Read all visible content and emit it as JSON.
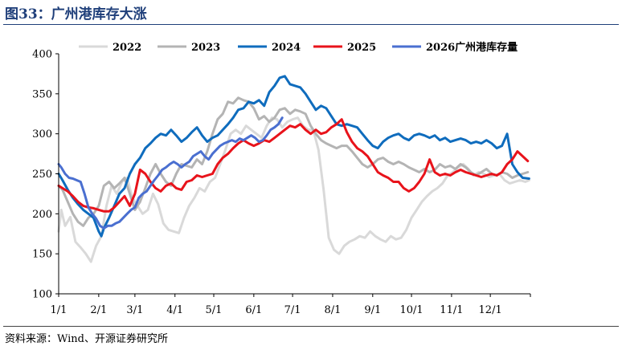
{
  "figure": {
    "title": "图33：广州港库存大涨",
    "source": "资料来源：Wind、开源证券研究所"
  },
  "colors": {
    "s2022": "#d9d9d9",
    "s2023": "#b4b4b4",
    "s2024": "#0f6cbd",
    "s2025": "#e8131b",
    "s2026": "#4a6fd0",
    "title": "#1f3f7a"
  },
  "chart_data": {
    "type": "line",
    "title": "",
    "xlabel": "",
    "ylabel": "",
    "ylim": [
      100,
      400
    ],
    "yticks": [
      "100",
      "150",
      "200",
      "250",
      "300",
      "350",
      "400"
    ],
    "xlim": [
      1,
      366
    ],
    "xticks": [
      {
        "label": "1/1",
        "day": 1
      },
      {
        "label": "2/1",
        "day": 32
      },
      {
        "label": "3/1",
        "day": 60
      },
      {
        "label": "4/1",
        "day": 91
      },
      {
        "label": "5/1",
        "day": 121
      },
      {
        "label": "6/1",
        "day": 152
      },
      {
        "label": "7/1",
        "day": 182
      },
      {
        "label": "8/1",
        "day": 213
      },
      {
        "label": "9/1",
        "day": 244
      },
      {
        "label": "10/1",
        "day": 274
      },
      {
        "label": "11/1",
        "day": 305
      },
      {
        "label": "12/1",
        "day": 335
      }
    ],
    "grid": false,
    "legend_position": "top",
    "series": [
      {
        "name": "2022",
        "color_key": "s2022",
        "x": [
          1,
          3,
          6,
          10,
          14,
          18,
          22,
          26,
          30,
          34,
          38,
          42,
          46,
          50,
          54,
          58,
          62,
          66,
          70,
          74,
          78,
          82,
          86,
          90,
          94,
          98,
          102,
          106,
          110,
          114,
          118,
          122,
          126,
          130,
          134,
          138,
          142,
          146,
          150,
          154,
          158,
          162,
          166,
          170,
          174,
          178,
          182,
          186,
          190,
          194,
          198,
          202,
          206,
          210,
          214,
          218,
          222,
          226,
          230,
          234,
          238,
          242,
          246,
          250,
          254,
          258,
          262,
          266,
          270,
          274,
          278,
          282,
          286,
          290,
          294,
          298,
          302,
          306,
          310,
          314,
          318,
          322,
          326,
          330,
          334,
          338,
          342,
          346,
          350,
          354,
          358,
          362,
          365
        ],
        "values": [
          178,
          205,
          185,
          196,
          165,
          158,
          150,
          140,
          160,
          172,
          210,
          235,
          225,
          240,
          245,
          220,
          210,
          200,
          205,
          225,
          212,
          188,
          180,
          178,
          176,
          195,
          210,
          220,
          232,
          228,
          240,
          245,
          262,
          280,
          300,
          305,
          300,
          310,
          305,
          300,
          295,
          310,
          320,
          318,
          308,
          315,
          318,
          320,
          310,
          305,
          305,
          280,
          230,
          170,
          155,
          150,
          160,
          165,
          168,
          172,
          170,
          178,
          172,
          168,
          165,
          172,
          168,
          170,
          180,
          195,
          205,
          215,
          222,
          228,
          232,
          238,
          248,
          252,
          258,
          262,
          256,
          248,
          252,
          250,
          246,
          248,
          250,
          242,
          238,
          240,
          242,
          240,
          242
        ]
      },
      {
        "name": "2023",
        "color_key": "s2023",
        "x": [
          1,
          4,
          8,
          12,
          16,
          20,
          24,
          28,
          32,
          36,
          40,
          44,
          48,
          52,
          56,
          60,
          64,
          68,
          72,
          76,
          80,
          84,
          88,
          92,
          96,
          100,
          104,
          108,
          112,
          116,
          120,
          124,
          128,
          132,
          136,
          140,
          144,
          148,
          152,
          156,
          160,
          164,
          168,
          172,
          176,
          180,
          184,
          188,
          192,
          196,
          200,
          204,
          208,
          212,
          216,
          220,
          224,
          228,
          232,
          236,
          240,
          244,
          248,
          252,
          256,
          260,
          264,
          268,
          272,
          276,
          280,
          284,
          288,
          292,
          296,
          300,
          304,
          308,
          312,
          316,
          320,
          324,
          328,
          332,
          336,
          340,
          344,
          348,
          352,
          356,
          360,
          364
        ],
        "values": [
          235,
          230,
          215,
          200,
          190,
          185,
          195,
          200,
          210,
          235,
          240,
          232,
          238,
          245,
          225,
          205,
          215,
          232,
          250,
          262,
          250,
          240,
          235,
          250,
          262,
          260,
          258,
          268,
          262,
          278,
          300,
          318,
          325,
          340,
          338,
          345,
          342,
          340,
          332,
          318,
          322,
          315,
          320,
          330,
          332,
          325,
          330,
          328,
          325,
          310,
          300,
          292,
          288,
          285,
          282,
          285,
          285,
          278,
          270,
          262,
          258,
          262,
          268,
          270,
          265,
          262,
          265,
          262,
          258,
          255,
          252,
          256,
          252,
          255,
          262,
          258,
          260,
          256,
          262,
          258,
          252,
          248,
          252,
          256,
          250,
          248,
          252,
          250,
          245,
          248,
          250,
          252
        ]
      },
      {
        "name": "2024",
        "color_key": "s2024",
        "x": [
          1,
          4,
          8,
          12,
          16,
          20,
          24,
          28,
          32,
          34,
          36,
          40,
          44,
          48,
          52,
          56,
          60,
          64,
          68,
          72,
          76,
          80,
          84,
          88,
          92,
          96,
          100,
          104,
          108,
          112,
          116,
          120,
          124,
          128,
          132,
          136,
          140,
          144,
          148,
          152,
          156,
          160,
          164,
          168,
          172,
          176,
          180,
          184,
          188,
          192,
          196,
          200,
          204,
          208,
          212,
          216,
          220,
          224,
          228,
          232,
          236,
          240,
          244,
          248,
          252,
          256,
          260,
          264,
          268,
          272,
          276,
          280,
          284,
          288,
          292,
          296,
          300,
          304,
          308,
          312,
          316,
          320,
          324,
          328,
          332,
          336,
          340,
          344,
          348,
          352,
          356,
          360,
          365
        ],
        "values": [
          250,
          242,
          230,
          220,
          212,
          205,
          200,
          195,
          178,
          172,
          182,
          195,
          210,
          225,
          232,
          250,
          262,
          270,
          282,
          288,
          295,
          300,
          298,
          305,
          298,
          290,
          295,
          302,
          308,
          298,
          290,
          295,
          298,
          305,
          312,
          320,
          330,
          332,
          340,
          338,
          342,
          335,
          352,
          360,
          370,
          372,
          362,
          360,
          358,
          350,
          340,
          330,
          335,
          332,
          322,
          312,
          310,
          312,
          310,
          308,
          300,
          292,
          285,
          282,
          290,
          295,
          298,
          300,
          295,
          292,
          298,
          300,
          298,
          295,
          298,
          292,
          295,
          290,
          292,
          294,
          292,
          288,
          290,
          288,
          292,
          288,
          282,
          285,
          300,
          262,
          252,
          245,
          244
        ]
      },
      {
        "name": "2025",
        "color_key": "s2025",
        "x": [
          1,
          4,
          8,
          12,
          16,
          20,
          24,
          28,
          32,
          36,
          40,
          44,
          48,
          52,
          56,
          60,
          64,
          68,
          72,
          76,
          80,
          84,
          88,
          92,
          96,
          100,
          104,
          108,
          112,
          116,
          120,
          124,
          128,
          132,
          136,
          140,
          144,
          148,
          152,
          156,
          160,
          164,
          168,
          172,
          176,
          180,
          184,
          188,
          192,
          196,
          200,
          204,
          208,
          212,
          216,
          220,
          224,
          228,
          232,
          236,
          240,
          244,
          248,
          252,
          256,
          260,
          264,
          268,
          272,
          276,
          280,
          284,
          288,
          292,
          296,
          300,
          304,
          308,
          312,
          316,
          320,
          324,
          328,
          332,
          336,
          340,
          344,
          348,
          352,
          356,
          360,
          364
        ],
        "values": [
          235,
          232,
          228,
          222,
          215,
          210,
          208,
          207,
          205,
          203,
          203,
          208,
          215,
          222,
          210,
          225,
          255,
          250,
          240,
          232,
          228,
          235,
          238,
          232,
          230,
          240,
          242,
          248,
          246,
          248,
          250,
          262,
          270,
          275,
          282,
          288,
          292,
          288,
          285,
          288,
          292,
          290,
          295,
          300,
          305,
          310,
          308,
          312,
          305,
          300,
          305,
          300,
          302,
          308,
          312,
          318,
          302,
          290,
          282,
          278,
          272,
          262,
          252,
          248,
          245,
          240,
          240,
          232,
          228,
          232,
          240,
          250,
          268,
          252,
          248,
          250,
          248,
          252,
          255,
          252,
          250,
          248,
          246,
          248,
          250,
          248,
          252,
          262,
          268,
          278,
          272,
          266
        ]
      },
      {
        "name": "2026广州港库存量",
        "color_key": "s2026",
        "x": [
          1,
          3,
          6,
          9,
          12,
          15,
          18,
          21,
          24,
          27,
          30,
          33,
          36,
          39,
          42,
          45,
          48,
          51,
          54,
          57,
          60,
          63,
          66,
          69,
          72,
          75,
          78,
          81,
          84,
          87,
          90,
          93,
          96,
          99,
          102,
          105,
          108,
          111,
          114,
          117,
          120,
          123,
          126,
          129,
          132,
          135,
          138,
          141,
          144,
          147,
          150,
          153,
          156,
          159,
          162,
          165,
          168,
          171,
          174
        ],
        "values": [
          262,
          258,
          250,
          245,
          244,
          242,
          240,
          225,
          208,
          200,
          194,
          185,
          182,
          185,
          185,
          188,
          190,
          195,
          200,
          205,
          208,
          220,
          225,
          228,
          235,
          242,
          248,
          255,
          258,
          262,
          265,
          262,
          258,
          262,
          265,
          272,
          275,
          278,
          272,
          268,
          275,
          280,
          285,
          288,
          290,
          292,
          290,
          294,
          292,
          295,
          298,
          295,
          290,
          292,
          298,
          305,
          308,
          312,
          320
        ]
      }
    ]
  }
}
